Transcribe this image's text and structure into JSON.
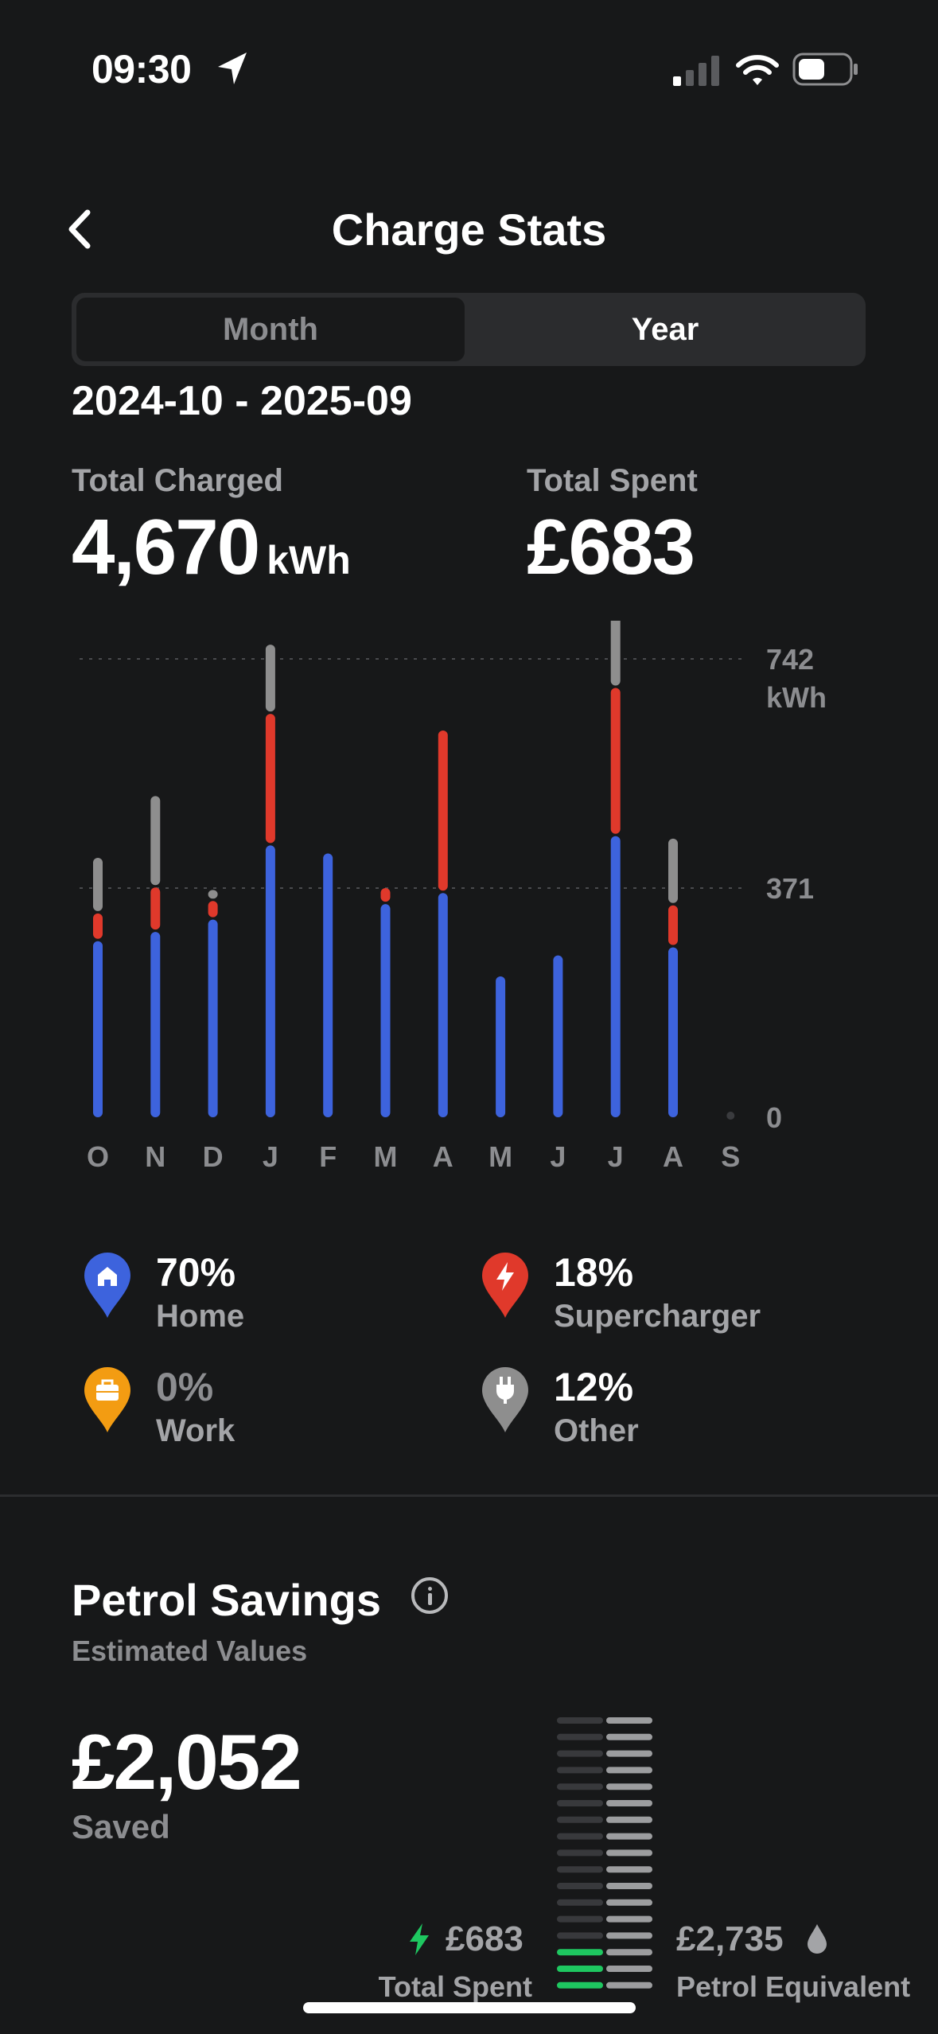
{
  "status_bar": {
    "time": "09:30"
  },
  "header": {
    "title": "Charge Stats"
  },
  "segments": {
    "month": "Month",
    "year": "Year",
    "selected": "Year"
  },
  "range": "2024-10 - 2025-09",
  "totals": {
    "charged_label": "Total Charged",
    "charged_value": "4,670",
    "charged_unit": "kWh",
    "spent_label": "Total Spent",
    "spent_value": "£683"
  },
  "colors": {
    "home": "#3d63dd",
    "supercharger": "#e0392b",
    "work": "#f39c12",
    "other": "#8e8e8e",
    "savings": "#1ec760"
  },
  "chart_data": {
    "type": "bar",
    "stacked": true,
    "categories": [
      "O",
      "N",
      "D",
      "J",
      "F",
      "M",
      "A",
      "M",
      "J",
      "J",
      "A",
      "S"
    ],
    "series": [
      {
        "name": "Home",
        "values": [
          285,
          300,
          320,
          440,
          427,
          345,
          363,
          228,
          262,
          455,
          275,
          0
        ]
      },
      {
        "name": "Supercharger",
        "values": [
          45,
          72,
          30,
          213,
          0,
          26,
          263,
          0,
          0,
          240,
          68,
          0
        ]
      },
      {
        "name": "Other",
        "values": [
          90,
          148,
          18,
          112,
          0,
          0,
          0,
          0,
          0,
          126,
          108,
          0
        ]
      }
    ],
    "y_ticks": [
      {
        "value": 742,
        "label": "742",
        "unit": "kWh"
      },
      {
        "value": 371,
        "label": "371"
      },
      {
        "value": 0,
        "label": "0"
      }
    ],
    "ylim": [
      0,
      742
    ]
  },
  "legend": [
    {
      "percent": "70%",
      "name": "Home",
      "icon": "home-icon"
    },
    {
      "percent": "18%",
      "name": "Supercharger",
      "icon": "bolt-icon"
    },
    {
      "percent": "0%",
      "name": "Work",
      "icon": "briefcase-icon"
    },
    {
      "percent": "12%",
      "name": "Other",
      "icon": "plug-icon"
    }
  ],
  "petrol": {
    "title": "Petrol Savings",
    "subtitle": "Estimated Values",
    "amount": "£2,052",
    "saved_label": "Saved",
    "spent_value": "£683",
    "spent_label": "Total Spent",
    "petrol_value": "£2,735",
    "petrol_label": "Petrol Equivalent"
  }
}
